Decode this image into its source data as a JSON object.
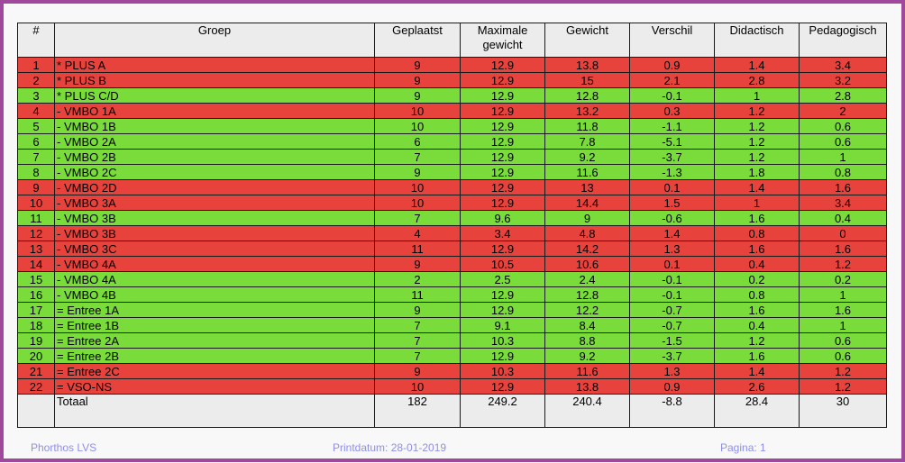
{
  "colors": {
    "red": "#e8423c",
    "green": "#79dc3a",
    "header_bg": "#ececec",
    "frame_border": "#a0499c",
    "footer_text": "#8f8fea"
  },
  "table": {
    "columns": [
      "#",
      "Groep",
      "Geplaatst",
      "Maximale gewicht",
      "Gewicht",
      "Verschil",
      "Didactisch",
      "Pedagogisch"
    ],
    "rows": [
      {
        "num": "1",
        "groep": "* PLUS A",
        "values": [
          "9",
          "12.9",
          "13.8",
          "0.9",
          "1.4",
          "3.4"
        ],
        "status": "red"
      },
      {
        "num": "2",
        "groep": "* PLUS B",
        "values": [
          "9",
          "12.9",
          "15",
          "2.1",
          "2.8",
          "3.2"
        ],
        "status": "red"
      },
      {
        "num": "3",
        "groep": "* PLUS C/D",
        "values": [
          "9",
          "12.9",
          "12.8",
          "-0.1",
          "1",
          "2.8"
        ],
        "status": "green"
      },
      {
        "num": "4",
        "groep": "- VMBO 1A",
        "values": [
          "10",
          "12.9",
          "13.2",
          "0.3",
          "1.2",
          "2"
        ],
        "status": "red"
      },
      {
        "num": "5",
        "groep": "- VMBO 1B",
        "values": [
          "10",
          "12.9",
          "11.8",
          "-1.1",
          "1.2",
          "0.6"
        ],
        "status": "green"
      },
      {
        "num": "6",
        "groep": "- VMBO 2A",
        "values": [
          "6",
          "12.9",
          "7.8",
          "-5.1",
          "1.2",
          "0.6"
        ],
        "status": "green"
      },
      {
        "num": "7",
        "groep": "- VMBO 2B",
        "values": [
          "7",
          "12.9",
          "9.2",
          "-3.7",
          "1.2",
          "1"
        ],
        "status": "green"
      },
      {
        "num": "8",
        "groep": "- VMBO 2C",
        "values": [
          "9",
          "12.9",
          "11.6",
          "-1.3",
          "1.8",
          "0.8"
        ],
        "status": "green"
      },
      {
        "num": "9",
        "groep": "- VMBO 2D",
        "values": [
          "10",
          "12.9",
          "13",
          "0.1",
          "1.4",
          "1.6"
        ],
        "status": "red"
      },
      {
        "num": "10",
        "groep": "- VMBO 3A",
        "values": [
          "10",
          "12.9",
          "14.4",
          "1.5",
          "1",
          "3.4"
        ],
        "status": "red"
      },
      {
        "num": "11",
        "groep": "- VMBO 3B",
        "values": [
          "7",
          "9.6",
          "9",
          "-0.6",
          "1.6",
          "0.4"
        ],
        "status": "green"
      },
      {
        "num": "12",
        "groep": "- VMBO 3B",
        "values": [
          "4",
          "3.4",
          "4.8",
          "1.4",
          "0.8",
          "0"
        ],
        "status": "red"
      },
      {
        "num": "13",
        "groep": "- VMBO 3C",
        "values": [
          "11",
          "12.9",
          "14.2",
          "1.3",
          "1.6",
          "1.6"
        ],
        "status": "red"
      },
      {
        "num": "14",
        "groep": "- VMBO 4A",
        "values": [
          "9",
          "10.5",
          "10.6",
          "0.1",
          "0.4",
          "1.2"
        ],
        "status": "red"
      },
      {
        "num": "15",
        "groep": "- VMBO 4A",
        "values": [
          "2",
          "2.5",
          "2.4",
          "-0.1",
          "0.2",
          "0.2"
        ],
        "status": "green"
      },
      {
        "num": "16",
        "groep": "- VMBO 4B",
        "values": [
          "11",
          "12.9",
          "12.8",
          "-0.1",
          "0.8",
          "1"
        ],
        "status": "green"
      },
      {
        "num": "17",
        "groep": "= Entree 1A",
        "values": [
          "9",
          "12.9",
          "12.2",
          "-0.7",
          "1.6",
          "1.6"
        ],
        "status": "green"
      },
      {
        "num": "18",
        "groep": "= Entree 1B",
        "values": [
          "7",
          "9.1",
          "8.4",
          "-0.7",
          "0.4",
          "1"
        ],
        "status": "green"
      },
      {
        "num": "19",
        "groep": "= Entree 2A",
        "values": [
          "7",
          "10.3",
          "8.8",
          "-1.5",
          "1.2",
          "0.6"
        ],
        "status": "green"
      },
      {
        "num": "20",
        "groep": "= Entree 2B",
        "values": [
          "7",
          "12.9",
          "9.2",
          "-3.7",
          "1.6",
          "0.6"
        ],
        "status": "green"
      },
      {
        "num": "21",
        "groep": "= Entree 2C",
        "values": [
          "9",
          "10.3",
          "11.6",
          "1.3",
          "1.4",
          "1.2"
        ],
        "status": "red"
      },
      {
        "num": "22",
        "groep": "= VSO-NS",
        "values": [
          "10",
          "12.9",
          "13.8",
          "0.9",
          "2.6",
          "1.2"
        ],
        "status": "red"
      }
    ],
    "total": {
      "label": "Totaal",
      "values": [
        "182",
        "249.2",
        "240.4",
        "-8.8",
        "28.4",
        "30"
      ]
    }
  },
  "footer": {
    "app_name": "Phorthos LVS",
    "print_date": "Printdatum: 28-01-2019",
    "page": "Pagina:  1"
  }
}
